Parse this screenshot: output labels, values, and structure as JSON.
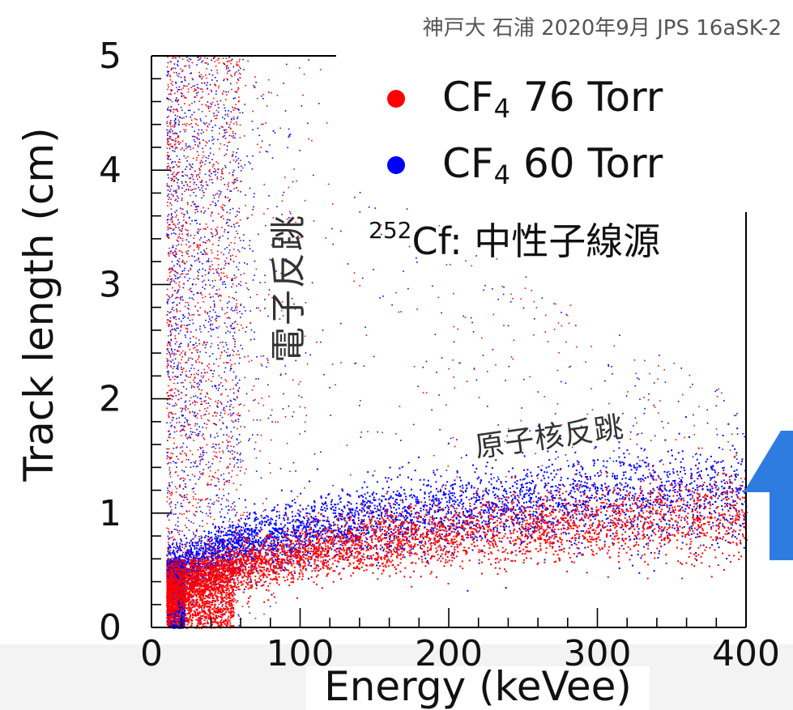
{
  "credit": "神戸大 石浦 2020年9月 JPS 16aSK-2",
  "legend": [
    {
      "prefix": "CF",
      "sub": "4",
      "suffix": "76 Torr",
      "color": "#ff0000"
    },
    {
      "prefix": "CF",
      "sub": "4",
      "suffix": "60 Torr",
      "color": "#0000ff"
    }
  ],
  "source": {
    "isotope_mass": "252",
    "text": "Cf: 中性子線源"
  },
  "annotations": {
    "electron_recoil": "電子反跳",
    "nuclear_recoil": "原子核反跳"
  },
  "arrow_color": "#2f7ce0",
  "chart_data": {
    "type": "scatter",
    "xlabel": "Energy (keVee)",
    "ylabel": "Track length (cm)",
    "xlim": [
      0,
      400
    ],
    "ylim": [
      0,
      5
    ],
    "xticks": [
      "0",
      "100",
      "200",
      "300",
      "400"
    ],
    "yticks": [
      "0",
      "1",
      "2",
      "3",
      "4",
      "5"
    ],
    "series": [
      {
        "name": "CF4 76 Torr",
        "color": "#ff0000",
        "nuclear_band": {
          "x": [
            10,
            50,
            100,
            150,
            200,
            250,
            300,
            350,
            400
          ],
          "y": [
            0.3,
            0.5,
            0.65,
            0.75,
            0.82,
            0.88,
            0.93,
            0.97,
            1.0
          ]
        },
        "electron_band": {
          "x_range": [
            10,
            60
          ],
          "y_range": [
            0,
            5
          ]
        }
      },
      {
        "name": "CF4 60 Torr",
        "color": "#0000ff",
        "nuclear_band": {
          "x": [
            10,
            50,
            100,
            150,
            200,
            250,
            300,
            350,
            400
          ],
          "y": [
            0.45,
            0.7,
            0.85,
            0.95,
            1.02,
            1.08,
            1.12,
            1.15,
            1.18
          ]
        },
        "electron_band": {
          "x_range": [
            10,
            60
          ],
          "y_range": [
            0,
            5
          ]
        }
      }
    ]
  }
}
